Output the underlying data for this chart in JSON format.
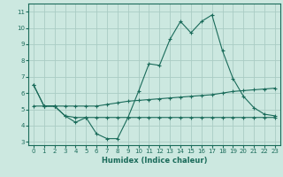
{
  "xlabel": "Humidex (Indice chaleur)",
  "background_color": "#cce8e0",
  "grid_color": "#aaccc4",
  "line_color": "#1a6b5a",
  "x_values": [
    0,
    1,
    2,
    3,
    4,
    5,
    6,
    7,
    8,
    9,
    10,
    11,
    12,
    13,
    14,
    15,
    16,
    17,
    18,
    19,
    20,
    21,
    22,
    23
  ],
  "line1": [
    6.5,
    5.2,
    5.2,
    4.6,
    4.2,
    4.5,
    3.5,
    3.2,
    3.2,
    4.5,
    6.1,
    7.8,
    7.7,
    9.3,
    10.4,
    9.7,
    10.4,
    10.8,
    8.6,
    6.9,
    5.8,
    5.1,
    4.7,
    4.6
  ],
  "line2": [
    5.2,
    5.2,
    5.2,
    5.2,
    5.2,
    5.2,
    5.2,
    5.3,
    5.4,
    5.5,
    5.55,
    5.6,
    5.65,
    5.7,
    5.75,
    5.8,
    5.85,
    5.9,
    6.0,
    6.1,
    6.15,
    6.2,
    6.25,
    6.3
  ],
  "line3": [
    6.5,
    5.2,
    5.2,
    4.6,
    4.5,
    4.5,
    4.5,
    4.5,
    4.5,
    4.5,
    4.5,
    4.5,
    4.5,
    4.5,
    4.5,
    4.5,
    4.5,
    4.5,
    4.5,
    4.5,
    4.5,
    4.5,
    4.5,
    4.5
  ],
  "xlim": [
    -0.5,
    23.5
  ],
  "ylim": [
    2.8,
    11.5
  ],
  "yticks": [
    3,
    4,
    5,
    6,
    7,
    8,
    9,
    10,
    11
  ],
  "xticks": [
    0,
    1,
    2,
    3,
    4,
    5,
    6,
    7,
    8,
    9,
    10,
    11,
    12,
    13,
    14,
    15,
    16,
    17,
    18,
    19,
    20,
    21,
    22,
    23
  ]
}
